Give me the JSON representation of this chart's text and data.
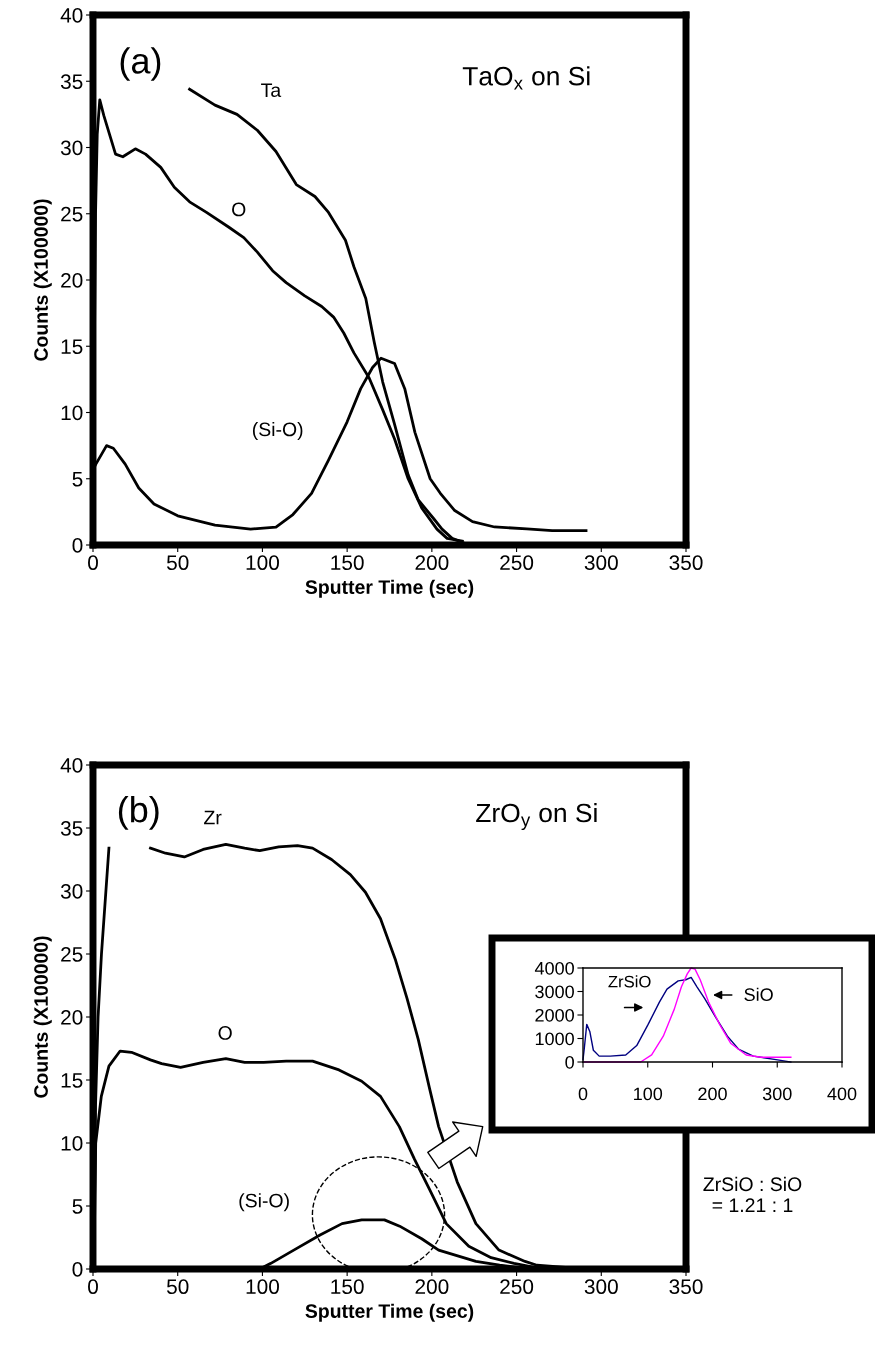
{
  "chart_data": [
    {
      "type": "line",
      "xlabel": "Sputter Time (sec)",
      "ylabel": "Counts (X100000)",
      "xlim": [
        0,
        350
      ],
      "ylim": [
        0,
        40
      ],
      "xticks": [
        0,
        50,
        100,
        150,
        200,
        250,
        300,
        350
      ],
      "yticks": [
        0,
        5,
        10,
        15,
        20,
        25,
        30,
        35,
        40
      ],
      "grid": false,
      "annotations": [
        "(a)",
        "TaO$_{x}$ on Si"
      ],
      "series": [
        {
          "name": "Ta",
          "color": "#000000",
          "x": [
            57,
            72,
            85,
            97,
            108,
            120,
            131,
            139,
            149,
            154,
            161,
            166,
            171,
            178,
            186,
            192,
            201,
            206,
            212,
            220,
            240,
            290
          ],
          "values": [
            34.4,
            33.2,
            32.5,
            31.3,
            29.7,
            27.2,
            26.3,
            25.1,
            23.0,
            21.0,
            18.6,
            15.3,
            12.3,
            9.1,
            5.3,
            3.4,
            2.0,
            1.2,
            0.5,
            0.1,
            0,
            0
          ]
        },
        {
          "name": "O",
          "color": "#000000",
          "x": [
            0.5,
            1.5,
            2.5,
            4,
            6.4,
            13.3,
            17.6,
            25,
            31,
            40,
            48,
            57,
            67,
            80,
            89,
            97,
            106,
            114,
            125,
            135,
            142,
            148,
            154,
            163,
            171,
            178,
            186,
            194,
            203,
            209,
            218
          ],
          "values": [
            10,
            25,
            31,
            33.6,
            32.4,
            29.5,
            29.3,
            29.9,
            29.5,
            28.5,
            27.0,
            25.9,
            25.1,
            24.0,
            23.2,
            22.1,
            20.7,
            19.8,
            18.8,
            18.0,
            17.2,
            16.0,
            14.5,
            12.6,
            10.2,
            8.0,
            5.0,
            2.8,
            1.2,
            0.5,
            0.3
          ]
        },
        {
          "name": "(Si-O)",
          "color": "#000000",
          "x": [
            0.5,
            1.7,
            8,
            12,
            19,
            27,
            36,
            50,
            72,
            93,
            108,
            118,
            129,
            139,
            150,
            158,
            165,
            170,
            178,
            184,
            190,
            199,
            205,
            213.5,
            224,
            237,
            256,
            271,
            291
          ],
          "values": [
            5.8,
            6.1,
            7.5,
            7.3,
            6.1,
            4.3,
            3.1,
            2.2,
            1.5,
            1.2,
            1.35,
            2.3,
            3.9,
            6.4,
            9.3,
            11.8,
            13.4,
            14.1,
            13.7,
            11.8,
            8.5,
            5.0,
            3.9,
            2.6,
            1.76,
            1.36,
            1.22,
            1.08,
            1.08
          ]
        }
      ]
    },
    {
      "type": "line",
      "xlabel": "Sputter Time (sec)",
      "ylabel": "Counts (X100000)",
      "xlim": [
        0,
        350
      ],
      "ylim": [
        0,
        40
      ],
      "xticks": [
        0,
        50,
        100,
        150,
        200,
        250,
        300,
        350
      ],
      "yticks": [
        0,
        5,
        10,
        15,
        20,
        25,
        30,
        35,
        40
      ],
      "grid": false,
      "annotations": [
        "(b)",
        "ZrO$_{y}$ on Si",
        "ZrSiO : SiO\n= 1.21 : 1"
      ],
      "series": [
        {
          "name": "Zr",
          "color": "#000000",
          "x": [
            0.5,
            1.5,
            3,
            5,
            9.4,
            20,
            33.9,
            42.8,
            53.9,
            65,
            78.4,
            89.5,
            98.4,
            109.6,
            120.7,
            129.6,
            140.8,
            151.9,
            160.8,
            169.7,
            178.6,
            185.3,
            192,
            198.7,
            204,
            215,
            226,
            239.6,
            255,
            262,
            290,
            322
          ],
          "values": [
            0,
            13,
            20,
            25,
            33.4,
            null,
            33.4,
            33.0,
            32.7,
            33.3,
            33.7,
            33.4,
            33.2,
            33.5,
            33.6,
            33.4,
            32.5,
            31.3,
            29.9,
            27.8,
            24.5,
            21.5,
            18.2,
            14.3,
            11.3,
            6.9,
            3.6,
            1.5,
            0.6,
            0.3,
            0,
            0
          ]
        },
        {
          "name": "O",
          "color": "#000000",
          "x": [
            0.5,
            1.6,
            4.9,
            9.4,
            16,
            22.7,
            33.9,
            40.5,
            51.7,
            65,
            78.4,
            89.5,
            100.7,
            114,
            129.6,
            145.2,
            158.6,
            169.7,
            180.8,
            189.8,
            198.7,
            208.5,
            221.8,
            235,
            248.5,
            262
          ],
          "values": [
            0,
            10,
            13.7,
            16.1,
            17.3,
            17.2,
            16.6,
            16.3,
            16.0,
            16.4,
            16.7,
            16.4,
            16.4,
            16.5,
            16.5,
            15.8,
            14.9,
            13.7,
            11.3,
            8.7,
            6.3,
            3.6,
            1.8,
            0.9,
            0.45,
            0.1
          ]
        },
        {
          "name": "(Si-O)",
          "color": "#000000",
          "x": [
            98.4,
            105,
            118.5,
            134,
            147,
            158.6,
            172,
            181,
            194,
            204,
            226,
            240,
            250
          ],
          "values": [
            0,
            0.45,
            1.5,
            2.7,
            3.6,
            3.9,
            3.9,
            3.4,
            2.4,
            1.5,
            0.6,
            0.3,
            0.15
          ]
        }
      ]
    },
    {
      "type": "line",
      "xlim": [
        0,
        400
      ],
      "ylim": [
        0,
        4000
      ],
      "xticks": [
        0,
        100,
        200,
        300,
        400
      ],
      "yticks": [
        0,
        1000,
        2000,
        3000,
        4000
      ],
      "grid": false,
      "annotations": [
        "ZrSiO",
        "SiO"
      ],
      "series": [
        {
          "color": "#000080",
          "x": [
            0,
            1.7,
            5.8,
            10.5,
            16,
            25,
            42,
            66,
            83,
            100.6,
            118,
            129.7,
            147,
            158.7,
            167,
            176,
            188,
            205,
            223,
            240,
            263,
            298,
            321
          ],
          "values": [
            100,
            500,
            1600,
            1300,
            500,
            250,
            250,
            300,
            700,
            1600,
            2550,
            3100,
            3450,
            3500,
            3600,
            3200,
            2700,
            1900,
            1100,
            550,
            250,
            100,
            0
          ]
        },
        {
          "color": "#ff00ff",
          "x": [
            1.7,
            19,
            89,
            106,
            124,
            141,
            152,
            161,
            167,
            173,
            181,
            194,
            211,
            228,
            252,
            275,
            321
          ],
          "values": [
            0,
            0,
            0,
            300,
            1100,
            2250,
            3200,
            3750,
            4000,
            3950,
            3500,
            2550,
            1600,
            800,
            300,
            200,
            200
          ]
        }
      ]
    }
  ]
}
